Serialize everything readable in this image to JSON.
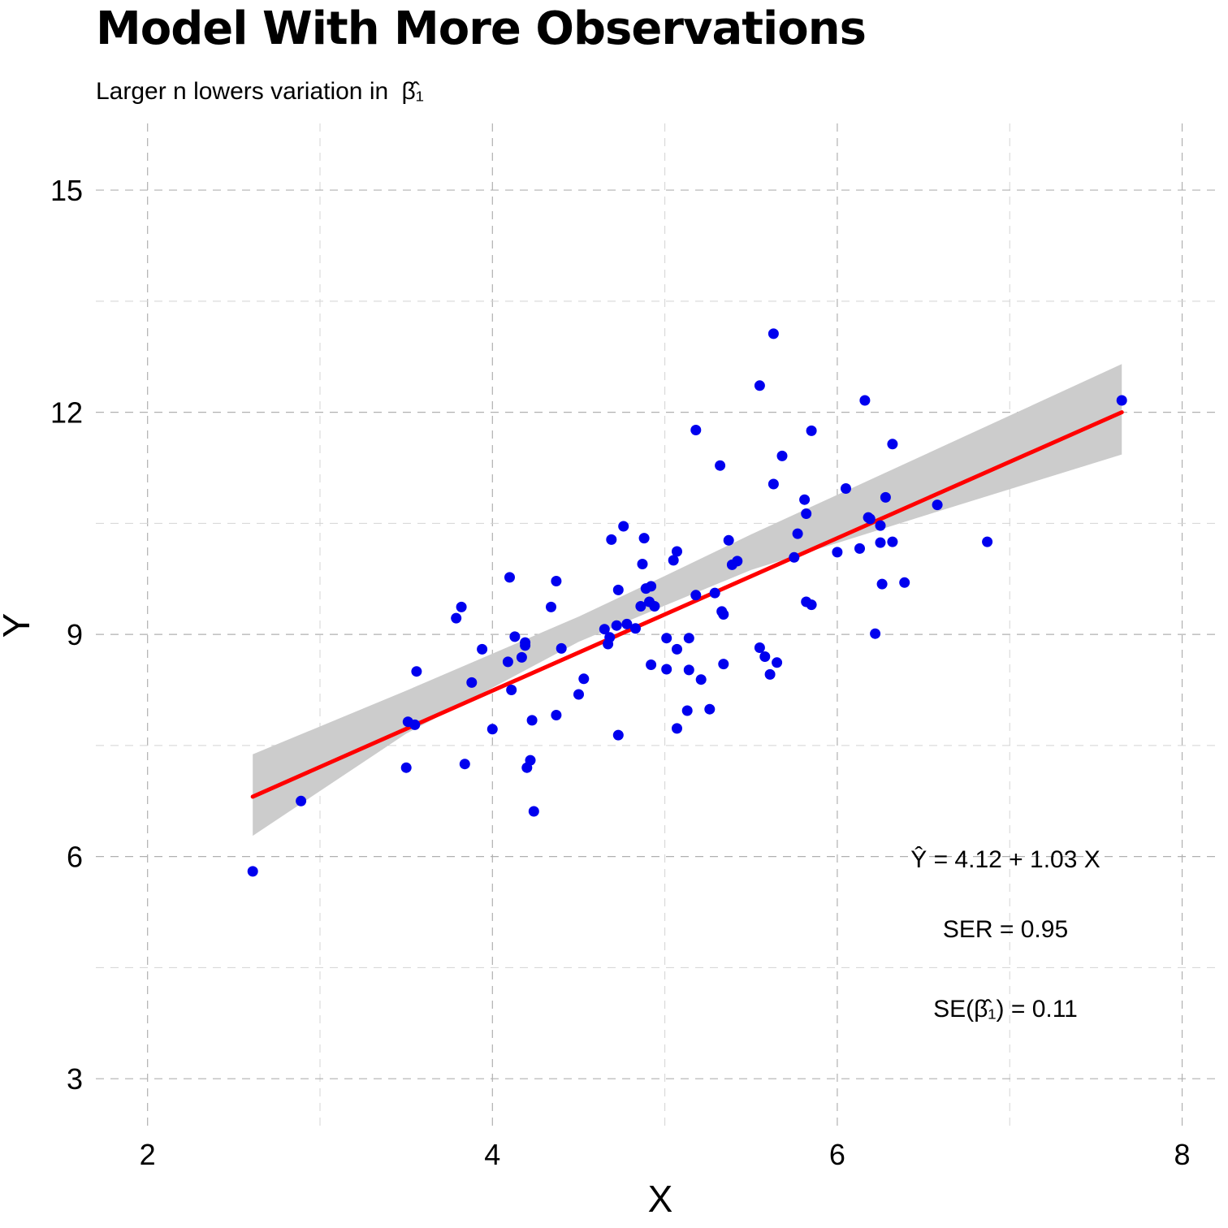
{
  "chart_data": {
    "type": "scatter",
    "title": "Model With More Observations",
    "subtitle": "Larger n lowers variation in",
    "subtitle_symbol": "β̂₁",
    "xlabel": "X",
    "ylabel": "Y",
    "xlim": [
      1.7,
      8.2
    ],
    "ylim": [
      2.3,
      15.9
    ],
    "x_ticks": [
      2,
      4,
      6,
      8
    ],
    "y_ticks": [
      3,
      6,
      9,
      12,
      15
    ],
    "grid": true,
    "point_color": "#0000ee",
    "line_color": "#ff0000",
    "band_color": "#cccccc",
    "fit": {
      "intercept": 4.12,
      "slope": 1.03,
      "x_range": [
        2.61,
        7.65
      ]
    },
    "confidence_band": {
      "x": [
        2.61,
        3.5,
        4.5,
        5.0,
        5.5,
        6.5,
        7.65
      ],
      "lower": [
        6.28,
        7.66,
        8.9,
        9.39,
        9.87,
        10.6,
        11.43
      ],
      "upper": [
        7.38,
        8.24,
        9.24,
        9.79,
        10.35,
        11.42,
        12.65
      ]
    },
    "points": [
      [
        2.61,
        5.8
      ],
      [
        2.89,
        6.75
      ],
      [
        3.5,
        7.2
      ],
      [
        3.51,
        7.82
      ],
      [
        3.55,
        7.78
      ],
      [
        3.56,
        8.5
      ],
      [
        3.79,
        9.22
      ],
      [
        3.82,
        9.37
      ],
      [
        3.84,
        7.25
      ],
      [
        3.88,
        8.35
      ],
      [
        3.94,
        8.8
      ],
      [
        4.0,
        7.72
      ],
      [
        4.09,
        8.63
      ],
      [
        4.1,
        9.77
      ],
      [
        4.11,
        8.25
      ],
      [
        4.13,
        8.97
      ],
      [
        4.17,
        8.69
      ],
      [
        4.19,
        8.85
      ],
      [
        4.19,
        8.89
      ],
      [
        4.2,
        7.2
      ],
      [
        4.22,
        7.3
      ],
      [
        4.23,
        7.84
      ],
      [
        4.24,
        6.61
      ],
      [
        4.34,
        9.37
      ],
      [
        4.37,
        7.91
      ],
      [
        4.37,
        9.72
      ],
      [
        4.4,
        8.81
      ],
      [
        4.5,
        8.19
      ],
      [
        4.53,
        8.4
      ],
      [
        4.65,
        9.07
      ],
      [
        4.67,
        8.87
      ],
      [
        4.68,
        8.96
      ],
      [
        4.69,
        10.28
      ],
      [
        4.72,
        9.12
      ],
      [
        4.73,
        9.6
      ],
      [
        4.73,
        7.64
      ],
      [
        4.76,
        10.46
      ],
      [
        4.78,
        9.14
      ],
      [
        4.83,
        9.08
      ],
      [
        4.86,
        9.38
      ],
      [
        4.87,
        9.95
      ],
      [
        4.88,
        10.3
      ],
      [
        4.89,
        9.62
      ],
      [
        4.91,
        9.44
      ],
      [
        4.92,
        9.65
      ],
      [
        4.92,
        8.59
      ],
      [
        4.94,
        9.38
      ],
      [
        5.01,
        8.95
      ],
      [
        5.01,
        8.53
      ],
      [
        5.05,
        10.0
      ],
      [
        5.07,
        8.8
      ],
      [
        5.07,
        10.12
      ],
      [
        5.07,
        7.73
      ],
      [
        5.13,
        7.97
      ],
      [
        5.14,
        8.52
      ],
      [
        5.14,
        8.95
      ],
      [
        5.18,
        9.53
      ],
      [
        5.18,
        11.76
      ],
      [
        5.21,
        8.39
      ],
      [
        5.26,
        7.99
      ],
      [
        5.29,
        9.56
      ],
      [
        5.32,
        11.28
      ],
      [
        5.33,
        9.31
      ],
      [
        5.34,
        9.27
      ],
      [
        5.34,
        8.6
      ],
      [
        5.37,
        10.27
      ],
      [
        5.39,
        9.94
      ],
      [
        5.42,
        9.99
      ],
      [
        5.55,
        8.82
      ],
      [
        5.55,
        12.36
      ],
      [
        5.58,
        8.7
      ],
      [
        5.61,
        8.46
      ],
      [
        5.63,
        13.06
      ],
      [
        5.63,
        11.03
      ],
      [
        5.65,
        8.62
      ],
      [
        5.68,
        11.41
      ],
      [
        5.75,
        10.04
      ],
      [
        5.77,
        10.36
      ],
      [
        5.81,
        10.82
      ],
      [
        5.82,
        9.44
      ],
      [
        5.82,
        10.63
      ],
      [
        5.85,
        11.75
      ],
      [
        5.85,
        9.4
      ],
      [
        6.0,
        10.11
      ],
      [
        6.05,
        10.97
      ],
      [
        6.13,
        10.16
      ],
      [
        6.16,
        12.16
      ],
      [
        6.18,
        10.58
      ],
      [
        6.19,
        10.56
      ],
      [
        6.22,
        9.01
      ],
      [
        6.25,
        10.24
      ],
      [
        6.25,
        10.47
      ],
      [
        6.26,
        9.68
      ],
      [
        6.28,
        10.85
      ],
      [
        6.32,
        10.25
      ],
      [
        6.32,
        11.57
      ],
      [
        6.39,
        9.7
      ],
      [
        6.58,
        10.75
      ],
      [
        6.87,
        10.25
      ],
      [
        7.65,
        12.16
      ]
    ]
  },
  "annotations": {
    "equation": "Ŷ = 4.12 + 1.03 X",
    "ser": "SER = 0.95",
    "se_beta": "SE(β̂₁) = 0.11"
  }
}
